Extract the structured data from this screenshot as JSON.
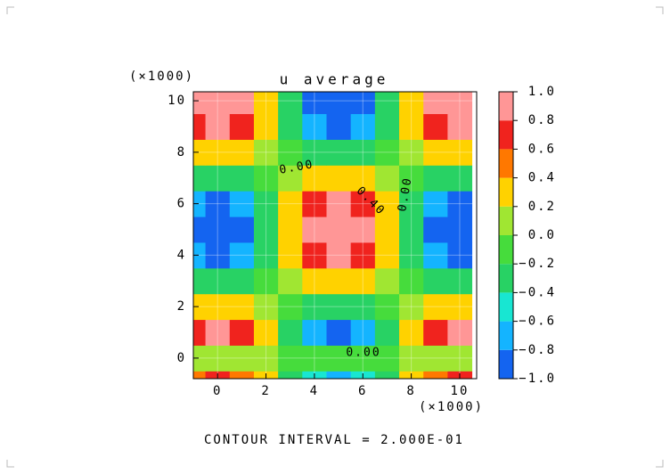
{
  "chart_data": {
    "type": "contour",
    "title": "u average",
    "x_multiplier_label": "(×1000)",
    "y_multiplier_label": "(×1000)",
    "footer": "CONTOUR INTERVAL = 2.000E-01",
    "x": [
      -1,
      0,
      1,
      2,
      3,
      4,
      5,
      6,
      7,
      8,
      9,
      10
    ],
    "y": [
      -1,
      0,
      1,
      2,
      3,
      4,
      5,
      6,
      7,
      8,
      9,
      10
    ],
    "z": [
      [
        0.57,
        0.7,
        0.57,
        0.22,
        -0.22,
        -0.57,
        -0.7,
        -0.57,
        -0.22,
        0.22,
        0.57,
        0.7
      ],
      [
        0.08,
        0.1,
        0.08,
        0.03,
        -0.03,
        -0.08,
        -0.1,
        -0.08,
        -0.03,
        0.03,
        0.08,
        0.1
      ],
      [
        0.69,
        0.85,
        0.69,
        0.26,
        -0.26,
        -0.69,
        -0.85,
        -0.69,
        -0.26,
        0.26,
        0.69,
        0.85
      ],
      [
        0.28,
        0.35,
        0.28,
        0.11,
        -0.11,
        -0.28,
        -0.35,
        -0.28,
        -0.11,
        0.11,
        0.28,
        0.35
      ],
      [
        -0.25,
        -0.31,
        -0.25,
        -0.1,
        0.1,
        0.25,
        0.31,
        0.25,
        0.1,
        -0.1,
        -0.25,
        -0.31
      ],
      [
        -0.66,
        -0.81,
        -0.66,
        -0.25,
        0.25,
        0.66,
        0.81,
        0.66,
        0.25,
        -0.25,
        -0.66,
        -0.81
      ],
      [
        -0.81,
        -1,
        -0.81,
        -0.31,
        0.31,
        0.81,
        1,
        0.81,
        0.31,
        -0.31,
        -0.81,
        -1
      ],
      [
        -0.66,
        -0.81,
        -0.66,
        -0.25,
        0.25,
        0.66,
        0.81,
        0.66,
        0.25,
        -0.25,
        -0.66,
        -0.81
      ],
      [
        -0.25,
        -0.31,
        -0.25,
        -0.1,
        0.1,
        0.25,
        0.31,
        0.25,
        0.1,
        -0.1,
        -0.25,
        -0.31
      ],
      [
        0.25,
        0.31,
        0.25,
        0.1,
        -0.1,
        -0.25,
        -0.31,
        -0.25,
        -0.1,
        0.1,
        0.25,
        0.31
      ],
      [
        0.66,
        0.81,
        0.66,
        0.25,
        -0.25,
        -0.66,
        -0.81,
        -0.66,
        -0.25,
        0.25,
        0.66,
        0.81
      ],
      [
        0.81,
        1,
        0.81,
        0.31,
        -0.31,
        -0.81,
        -1,
        -0.81,
        -0.31,
        0.31,
        0.81,
        1
      ]
    ],
    "xlim": [
      -1,
      10.7
    ],
    "ylim": [
      -0.8,
      10.35
    ],
    "xticks": [
      0,
      2,
      4,
      6,
      8,
      10
    ],
    "yticks": [
      0,
      2,
      4,
      6,
      8,
      10
    ],
    "grid": true,
    "levels": [
      {
        "value": -1,
        "label": "−1.0"
      },
      {
        "value": -0.8,
        "label": "−0.8"
      },
      {
        "value": -0.6,
        "label": "−0.6"
      },
      {
        "value": -0.4,
        "label": "−0.4"
      },
      {
        "value": -0.2,
        "label": "−0.2"
      },
      {
        "value": 0,
        "label": "0.0"
      },
      {
        "value": 0.2,
        "label": "0.2"
      },
      {
        "value": 0.4,
        "label": "0.4"
      },
      {
        "value": 0.6,
        "label": "0.6"
      },
      {
        "value": 0.8,
        "label": "0.8"
      },
      {
        "value": 1,
        "label": "1.0"
      }
    ],
    "colors": [
      "#1464f0",
      "#14b4ff",
      "#18e6d2",
      "#28d264",
      "#46dc3c",
      "#a0e632",
      "#ffd200",
      "#ff7800",
      "#f0231e",
      "#ff9696"
    ],
    "annotations": [
      "0.00",
      "0.40",
      "0.00",
      "0.00"
    ]
  }
}
